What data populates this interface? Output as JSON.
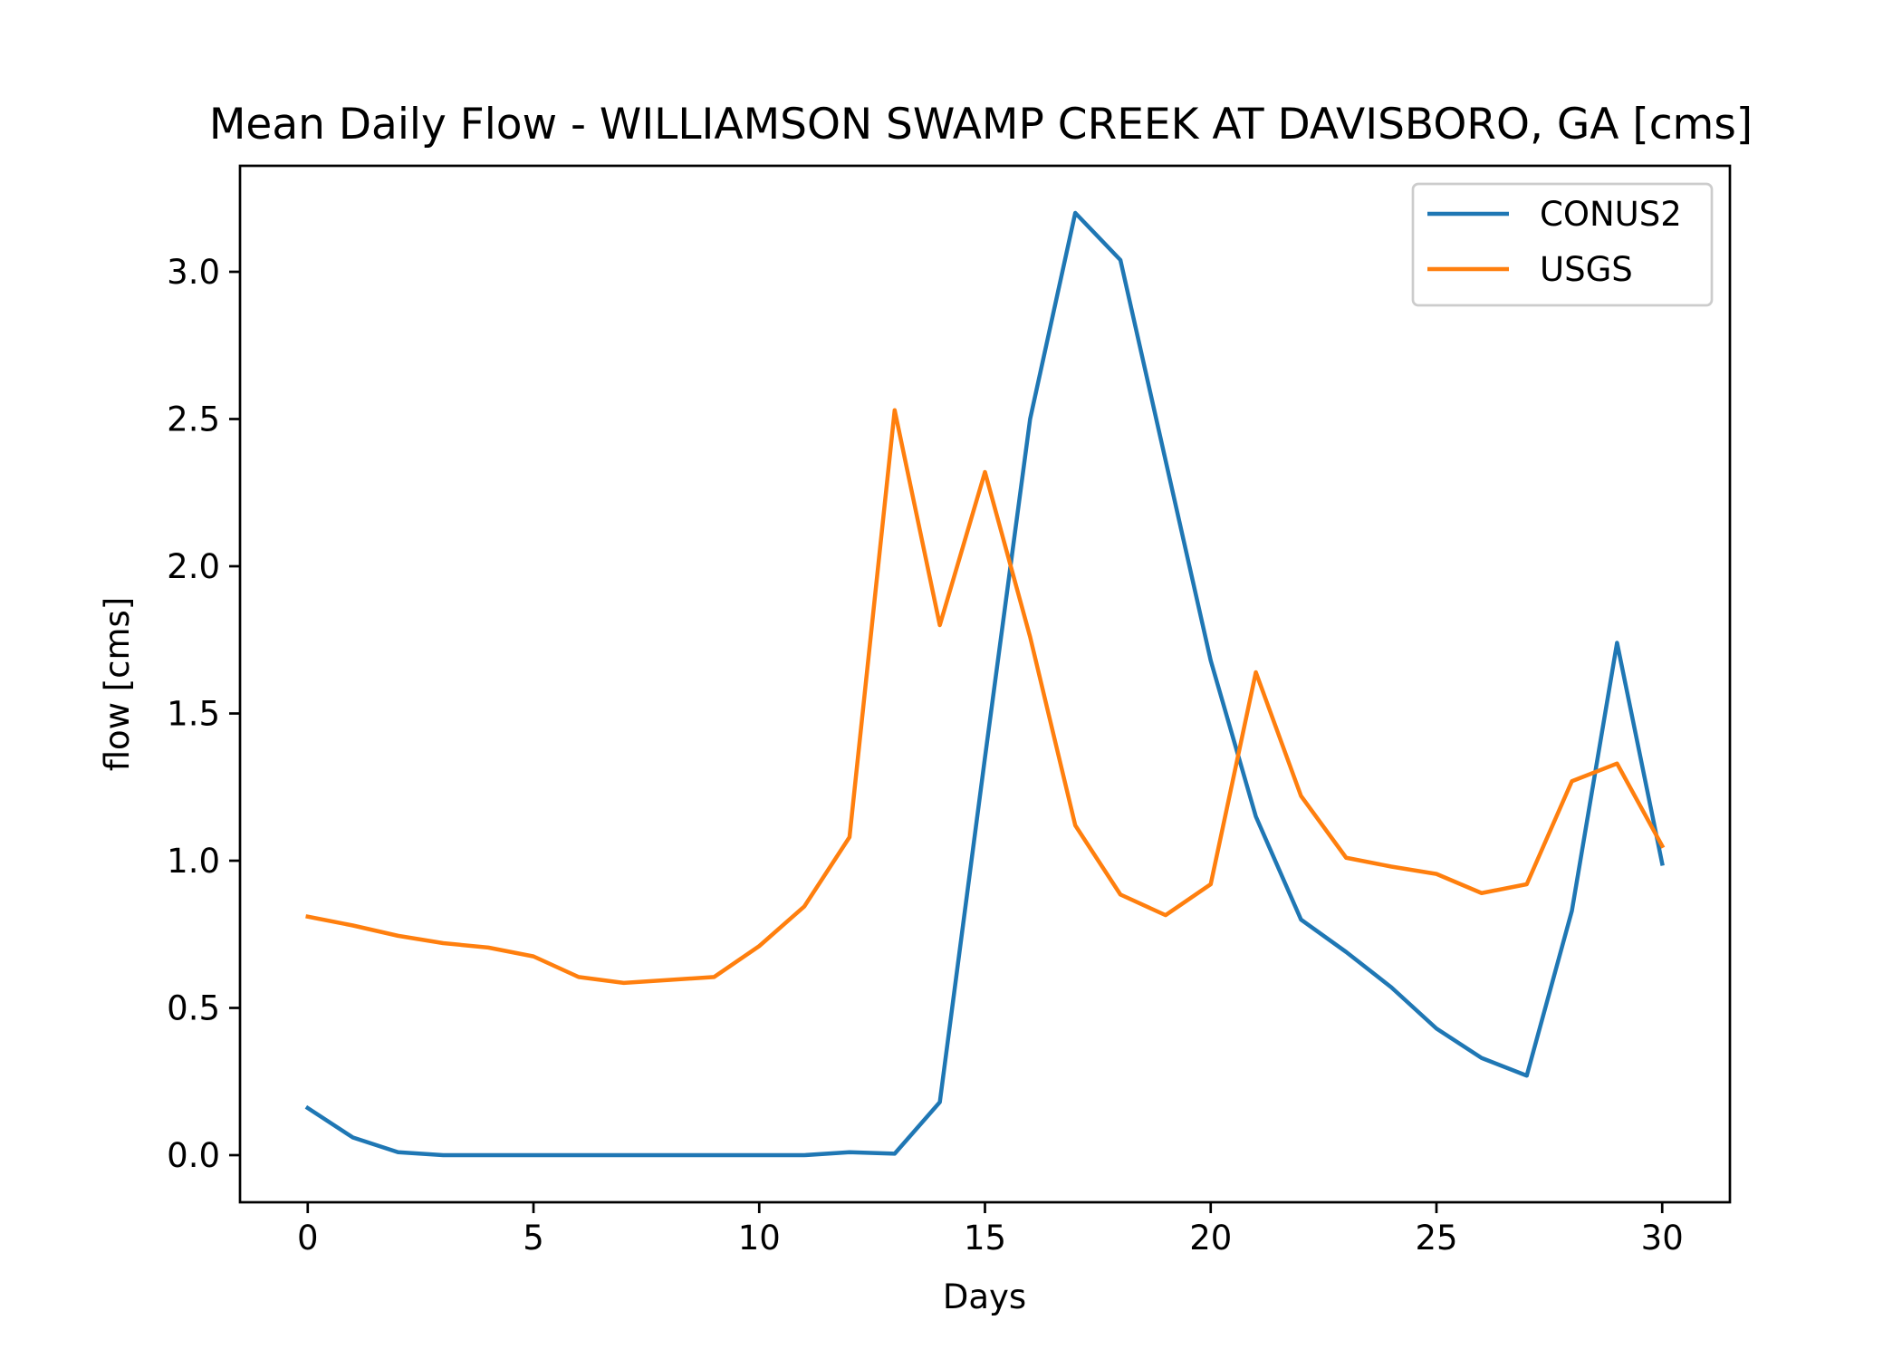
{
  "chart_data": {
    "type": "line",
    "title": "Mean Daily Flow - WILLIAMSON SWAMP CREEK AT DAVISBORO, GA [cms]",
    "xlabel": "Days",
    "ylabel": "flow [cms]",
    "xlim": [
      -1.5,
      31.5
    ],
    "ylim": [
      -0.16,
      3.36
    ],
    "xticks": [
      0,
      5,
      10,
      15,
      20,
      25,
      30
    ],
    "xtick_labels": [
      "0",
      "5",
      "10",
      "15",
      "20",
      "25",
      "30"
    ],
    "yticks": [
      0.0,
      0.5,
      1.0,
      1.5,
      2.0,
      2.5,
      3.0
    ],
    "ytick_labels": [
      "0.0",
      "0.5",
      "1.0",
      "1.5",
      "2.0",
      "2.5",
      "3.0"
    ],
    "grid": false,
    "legend_position": "upper right",
    "x": [
      0,
      1,
      2,
      3,
      4,
      5,
      6,
      7,
      8,
      9,
      10,
      11,
      12,
      13,
      14,
      15,
      16,
      17,
      18,
      19,
      20,
      21,
      22,
      23,
      24,
      25,
      26,
      27,
      28,
      29,
      30
    ],
    "series": [
      {
        "name": "CONUS2",
        "color": "#1f77b4",
        "values": [
          0.16,
          0.06,
          0.01,
          0.0,
          0.0,
          0.0,
          0.0,
          0.0,
          0.0,
          0.0,
          0.0,
          0.0,
          0.01,
          0.005,
          0.18,
          1.35,
          2.5,
          3.2,
          3.04,
          2.36,
          1.68,
          1.15,
          0.8,
          0.69,
          0.57,
          0.43,
          0.33,
          0.27,
          0.83,
          1.74,
          0.99
        ]
      },
      {
        "name": "USGS",
        "color": "#ff7f0e",
        "values": [
          0.81,
          0.78,
          0.745,
          0.72,
          0.705,
          0.675,
          0.605,
          0.585,
          0.595,
          0.605,
          0.71,
          0.845,
          1.08,
          2.53,
          1.8,
          2.32,
          1.76,
          1.12,
          0.885,
          0.815,
          0.92,
          1.64,
          1.22,
          1.01,
          0.98,
          0.955,
          0.89,
          0.92,
          1.27,
          1.33,
          1.05
        ]
      }
    ]
  }
}
